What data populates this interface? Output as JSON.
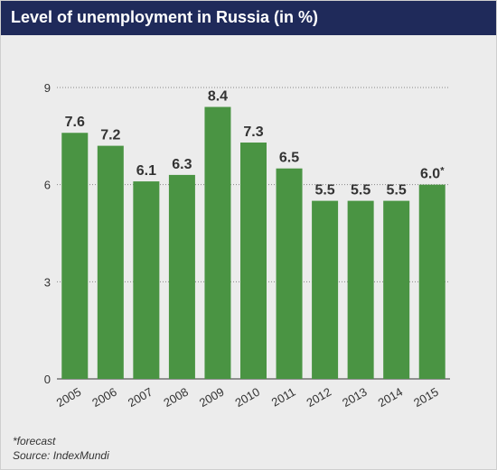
{
  "colors": {
    "header_bg": "#1f2a5a",
    "bar": "#4a9443",
    "background": "#ececec"
  },
  "footnotes": {
    "forecast_note": "*forecast",
    "source": "Source: IndexMundi"
  },
  "chart_data": {
    "type": "bar",
    "title": "Level of unemployment in Russia (in %)",
    "categories": [
      "2005",
      "2006",
      "2007",
      "2008",
      "2009",
      "2010",
      "2011",
      "2012",
      "2013",
      "2014",
      "2015"
    ],
    "values": [
      7.6,
      7.2,
      6.1,
      6.3,
      8.4,
      7.3,
      6.5,
      5.5,
      5.5,
      5.5,
      6.0
    ],
    "data_labels": [
      "7.6",
      "7.2",
      "6.1",
      "6.3",
      "8.4",
      "7.3",
      "6.5",
      "5.5",
      "5.5",
      "5.5",
      "6.0"
    ],
    "label_suffixes": [
      "",
      "",
      "",
      "",
      "",
      "",
      "",
      "",
      "",
      "",
      "*"
    ],
    "yticks": [
      0,
      3,
      6,
      9
    ],
    "ytick_labels": [
      "0",
      "3",
      "6",
      "9"
    ],
    "ylim": [
      0,
      9
    ],
    "xlabel": "",
    "ylabel": "",
    "grid": true,
    "legend": "none"
  }
}
